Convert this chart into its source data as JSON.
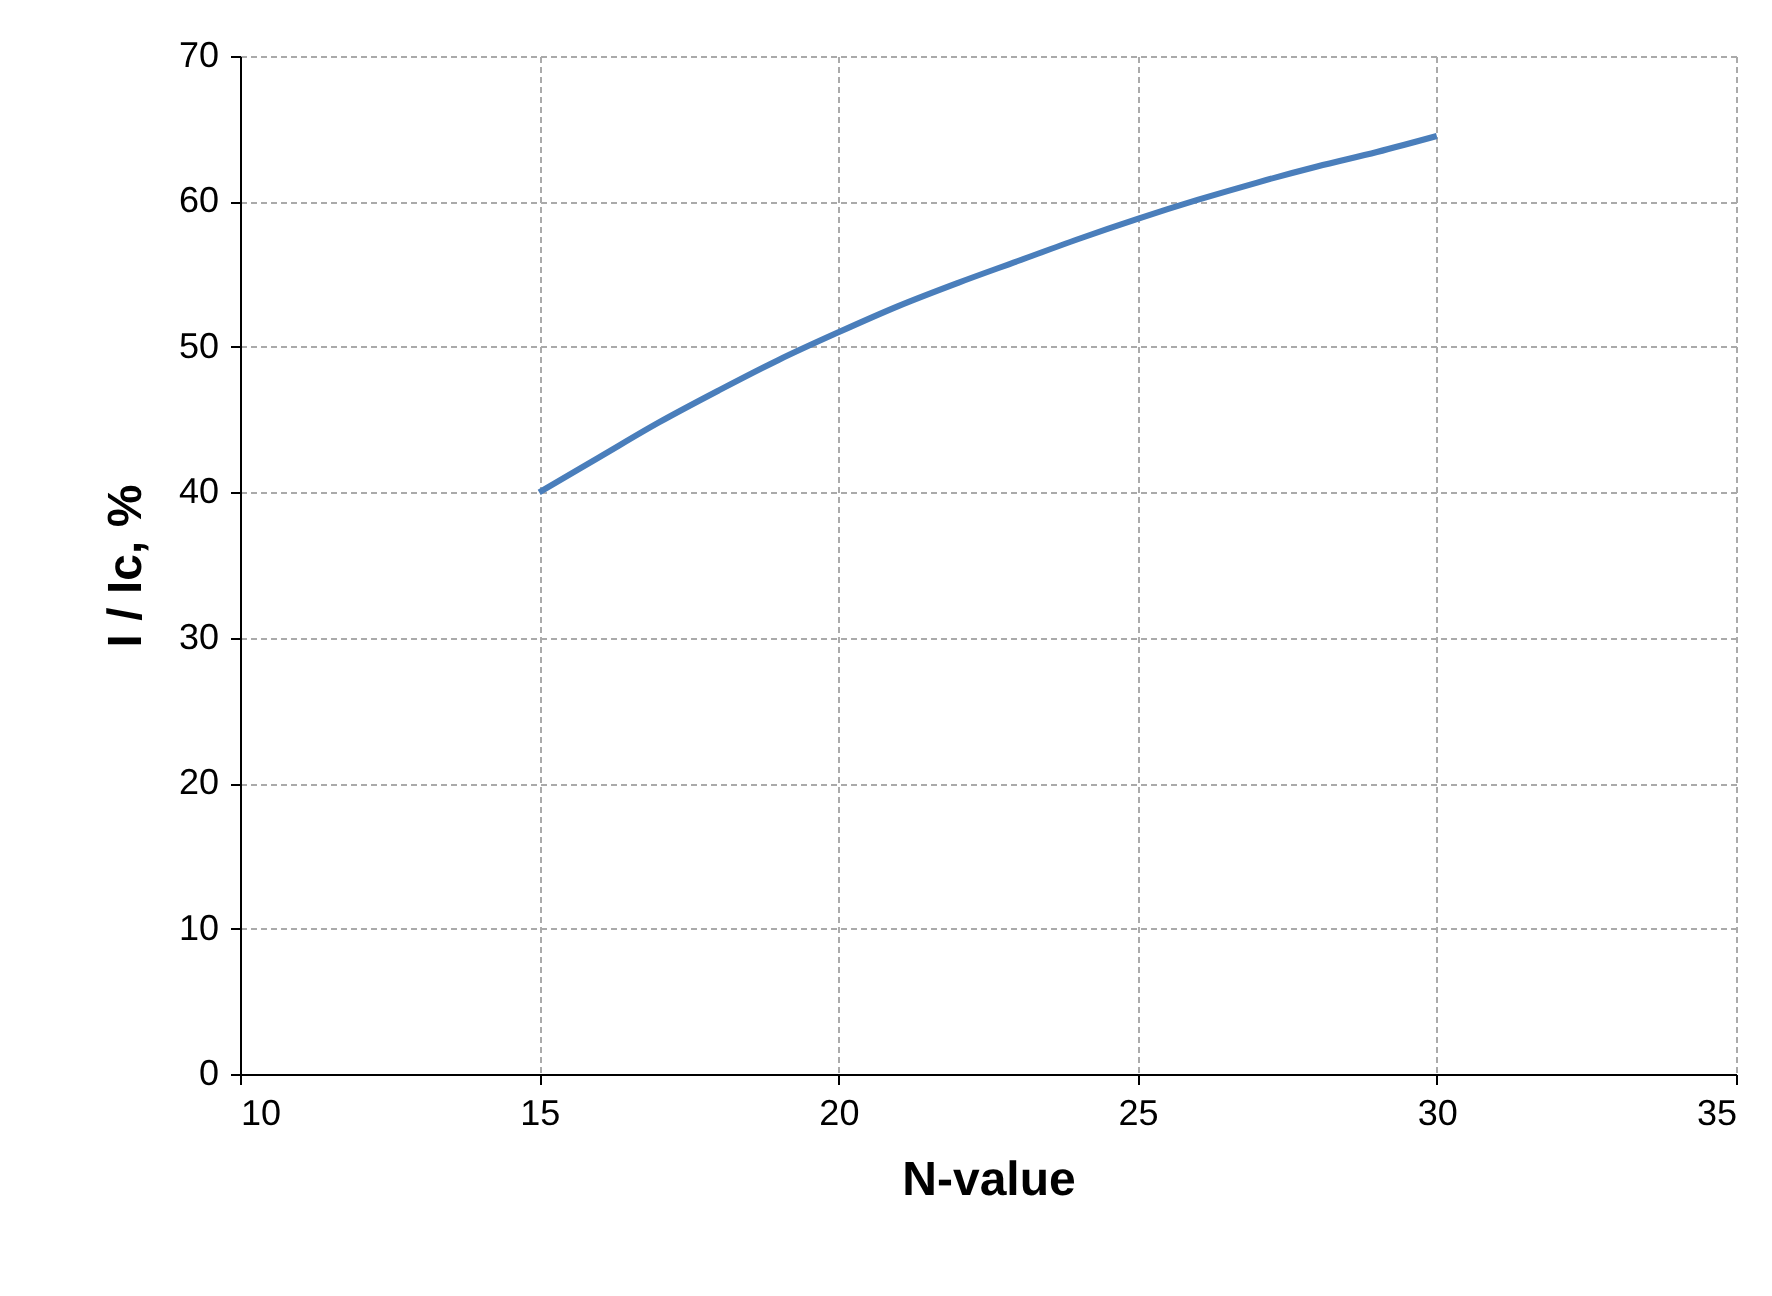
{
  "chart_data": {
    "type": "line",
    "xlabel": "N-value",
    "ylabel": "I / Ic, %",
    "x": [
      15,
      16,
      17,
      18,
      19,
      20,
      21,
      22,
      23,
      24,
      25,
      26,
      27,
      28,
      29,
      30
    ],
    "series": [
      {
        "color": "#4a7ebb",
        "values": [
          40,
          42.4,
          44.8,
          47,
          49.1,
          51,
          52.8,
          54.4,
          55.9,
          57.4,
          58.8,
          60.1,
          61.3,
          62.4,
          63.4,
          64.5
        ]
      }
    ],
    "xlim": [
      10,
      35
    ],
    "xticks": [
      10,
      15,
      20,
      25,
      30,
      35
    ],
    "ylim": [
      0,
      70
    ],
    "yticks": [
      0,
      10,
      20,
      30,
      40,
      50,
      60,
      70
    ],
    "grid": true,
    "marker": "none",
    "line_style": "solid"
  }
}
